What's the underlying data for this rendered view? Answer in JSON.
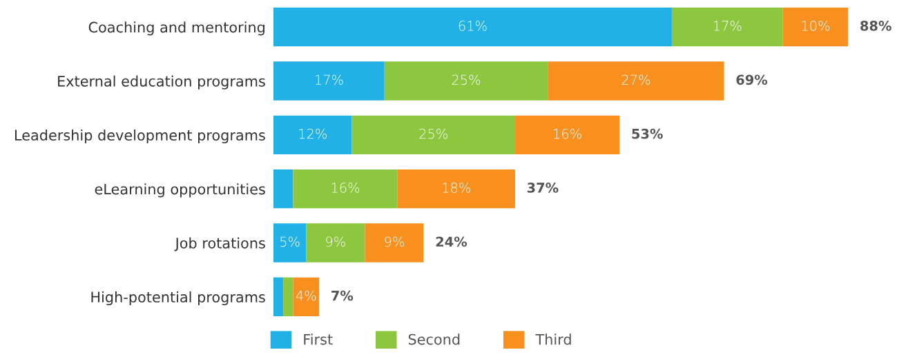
{
  "chart_data": {
    "type": "bar",
    "orientation": "horizontal",
    "stacked": true,
    "categories": [
      "Coaching and mentoring",
      "External education programs",
      "Leadership development programs",
      "eLearning opportunities",
      "Job rotations",
      "High-potential programs"
    ],
    "series": [
      {
        "name": "First",
        "color": "#21b1e6",
        "values": [
          61,
          17,
          12,
          3,
          5,
          1.5
        ],
        "value_labels": [
          "61%",
          "17%",
          "12%",
          null,
          "5%",
          null
        ]
      },
      {
        "name": "Second",
        "color": "#8dc63f",
        "values": [
          17,
          25,
          25,
          16,
          9,
          1.5
        ],
        "value_labels": [
          "17%",
          "25%",
          "25%",
          "16%",
          "9%",
          null
        ]
      },
      {
        "name": "Third",
        "color": "#f7901e",
        "values": [
          10,
          27,
          16,
          18,
          9,
          4
        ],
        "value_labels": [
          "10%",
          "27%",
          "16%",
          "18%",
          "9%",
          "4%"
        ]
      }
    ],
    "totals": [
      "88%",
      "69%",
      "53%",
      "37%",
      "24%",
      "7%"
    ],
    "legend": "bottom",
    "grid": false
  }
}
